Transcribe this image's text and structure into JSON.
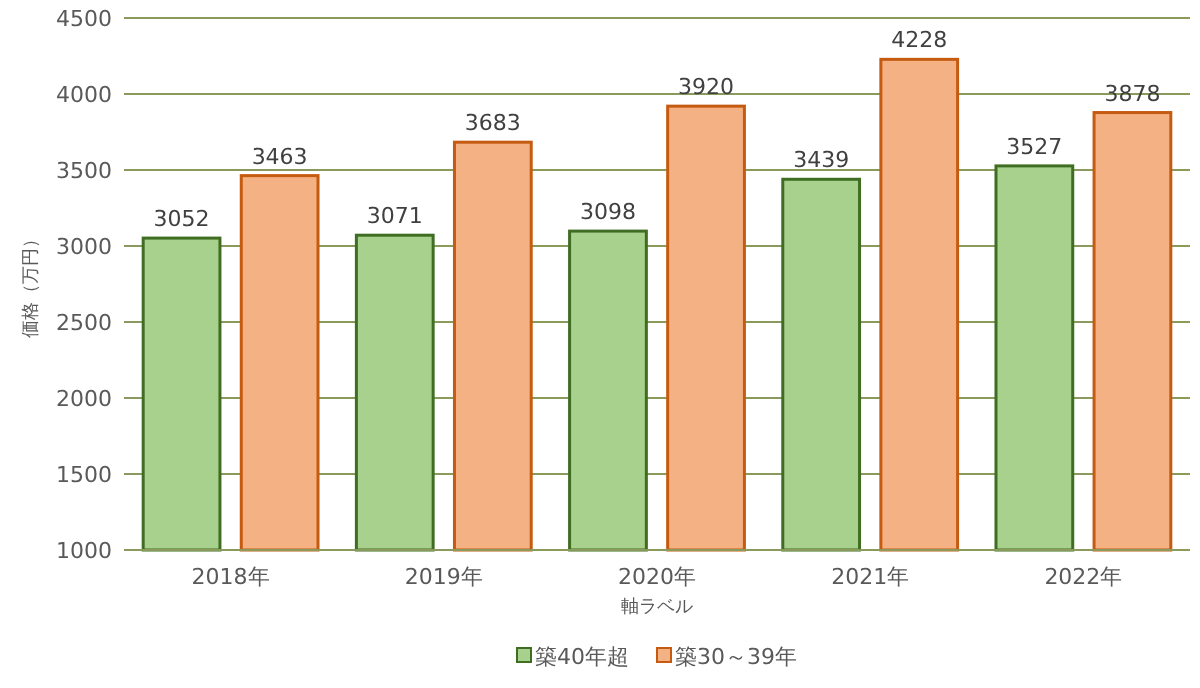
{
  "chart_data": {
    "type": "bar",
    "xlabel": "軸ラベル",
    "ylabel": "価格（万円）",
    "categories": [
      "2018年",
      "2019年",
      "2020年",
      "2021年",
      "2022年"
    ],
    "series": [
      {
        "name": "築40年超",
        "color": "#a9d18e",
        "values": [
          3052,
          3071,
          3098,
          3439,
          3527
        ]
      },
      {
        "name": "築30～39年",
        "color": "#f4b183",
        "values": [
          3463,
          3683,
          3920,
          4228,
          3878
        ]
      }
    ],
    "ylim": [
      1000,
      4500
    ],
    "yticks": [
      1000,
      1500,
      2000,
      2500,
      3000,
      3500,
      4000,
      4500
    ],
    "grid": "y",
    "legend": "bottom",
    "data_labels": true
  }
}
